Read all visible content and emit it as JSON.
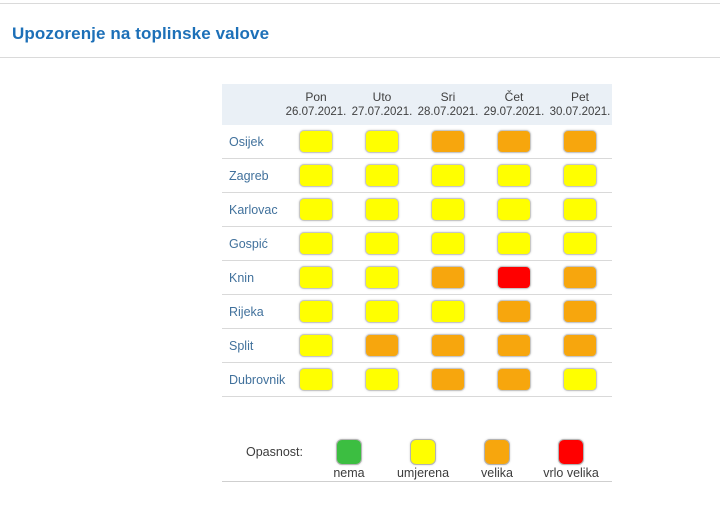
{
  "page": {
    "title": "Upozorenje na toplinske valove"
  },
  "table": {
    "columns": [
      {
        "day": "Pon",
        "date": "26.07.2021."
      },
      {
        "day": "Uto",
        "date": "27.07.2021."
      },
      {
        "day": "Sri",
        "date": "28.07.2021."
      },
      {
        "day": "Čet",
        "date": "29.07.2021."
      },
      {
        "day": "Pet",
        "date": "30.07.2021."
      }
    ],
    "rows": [
      {
        "city": "Osijek",
        "levels": [
          "umjerena",
          "umjerena",
          "velika",
          "velika",
          "velika"
        ]
      },
      {
        "city": "Zagreb",
        "levels": [
          "umjerena",
          "umjerena",
          "umjerena",
          "umjerena",
          "umjerena"
        ]
      },
      {
        "city": "Karlovac",
        "levels": [
          "umjerena",
          "umjerena",
          "umjerena",
          "umjerena",
          "umjerena"
        ]
      },
      {
        "city": "Gospić",
        "levels": [
          "umjerena",
          "umjerena",
          "umjerena",
          "umjerena",
          "umjerena"
        ]
      },
      {
        "city": "Knin",
        "levels": [
          "umjerena",
          "umjerena",
          "velika",
          "vrlo velika",
          "velika"
        ]
      },
      {
        "city": "Rijeka",
        "levels": [
          "umjerena",
          "umjerena",
          "umjerena",
          "velika",
          "velika"
        ]
      },
      {
        "city": "Split",
        "levels": [
          "umjerena",
          "velika",
          "velika",
          "velika",
          "velika"
        ]
      },
      {
        "city": "Dubrovnik",
        "levels": [
          "umjerena",
          "umjerena",
          "velika",
          "velika",
          "umjerena"
        ]
      }
    ]
  },
  "legend": {
    "label": "Opasnost:",
    "items": [
      {
        "label": "nema",
        "color": "#3cbe41"
      },
      {
        "label": "umjerena",
        "color": "#ffff00"
      },
      {
        "label": "velika",
        "color": "#f7a60d"
      },
      {
        "label": "vrlo velika",
        "color": "#ff0000"
      }
    ]
  },
  "colors": {
    "nema": "#3cbe41",
    "umjerena": "#ffff00",
    "velika": "#f7a60d",
    "vrlo velika": "#ff0000",
    "title_blue": "#1d70b8",
    "header_bg": "#eaf0f6",
    "city_text": "#41719c"
  },
  "chart_data": {
    "type": "heatmap",
    "title": "Upozorenje na toplinske valove",
    "x": [
      "Pon 26.07.2021.",
      "Uto 27.07.2021.",
      "Sri 28.07.2021.",
      "Čet 29.07.2021.",
      "Pet 30.07.2021."
    ],
    "y": [
      "Osijek",
      "Zagreb",
      "Karlovac",
      "Gospić",
      "Knin",
      "Rijeka",
      "Split",
      "Dubrovnik"
    ],
    "values": [
      [
        "umjerena",
        "umjerena",
        "velika",
        "velika",
        "velika"
      ],
      [
        "umjerena",
        "umjerena",
        "umjerena",
        "umjerena",
        "umjerena"
      ],
      [
        "umjerena",
        "umjerena",
        "umjerena",
        "umjerena",
        "umjerena"
      ],
      [
        "umjerena",
        "umjerena",
        "umjerena",
        "umjerena",
        "umjerena"
      ],
      [
        "umjerena",
        "umjerena",
        "velika",
        "vrlo velika",
        "velika"
      ],
      [
        "umjerena",
        "umjerena",
        "umjerena",
        "velika",
        "velika"
      ],
      [
        "umjerena",
        "velika",
        "velika",
        "velika",
        "velika"
      ],
      [
        "umjerena",
        "umjerena",
        "velika",
        "velika",
        "umjerena"
      ]
    ],
    "levels": [
      {
        "label": "nema",
        "color": "#3cbe41"
      },
      {
        "label": "umjerena",
        "color": "#ffff00"
      },
      {
        "label": "velika",
        "color": "#f7a60d"
      },
      {
        "label": "vrlo velika",
        "color": "#ff0000"
      }
    ],
    "legend_title": "Opasnost:",
    "legend_position": "bottom"
  }
}
